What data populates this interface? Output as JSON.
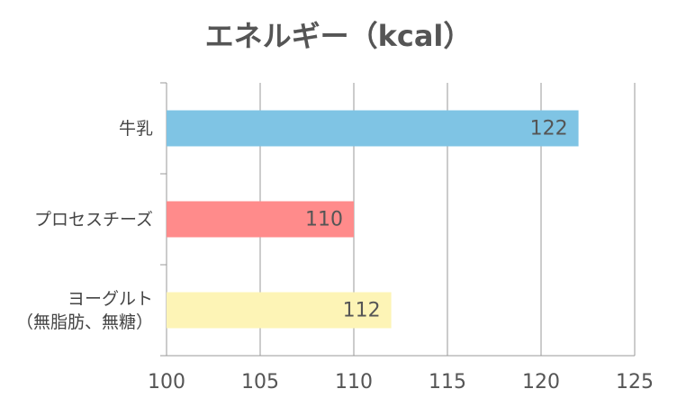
{
  "chart_data": {
    "type": "bar",
    "orientation": "horizontal",
    "title": "エネルギー（kcal）",
    "categories": [
      "牛乳",
      "プロセスチーズ",
      "ヨーグルト\n（無脂肪、無糖）"
    ],
    "values": [
      122,
      110,
      112
    ],
    "colors": [
      "#7fc4e4",
      "#ff8b8b",
      "#fdf4b6"
    ],
    "xlim": [
      100,
      125
    ],
    "xticks": [
      100,
      105,
      110,
      115,
      120,
      125
    ],
    "grid": true
  }
}
